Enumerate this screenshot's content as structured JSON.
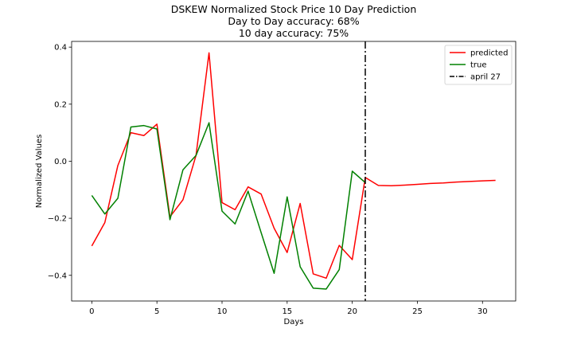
{
  "chart_data": {
    "type": "line",
    "title_lines": [
      "DSKEW Normalized Stock Price 10 Day Prediction",
      "Day to Day accuracy: 68%",
      "10 day accuracy: 75%"
    ],
    "xlabel": "Days",
    "ylabel": "Normalized Values",
    "xlim": [
      -1.55,
      32.55
    ],
    "ylim": [
      -0.49,
      0.42
    ],
    "xticks": [
      0,
      5,
      10,
      15,
      20,
      25,
      30
    ],
    "yticks": [
      -0.4,
      -0.2,
      0.0,
      0.2,
      0.4
    ],
    "ytick_labels": [
      "−0.4",
      "−0.2",
      "0.0",
      "0.2",
      "0.4"
    ],
    "series": [
      {
        "name": "predicted",
        "color": "#ff0000",
        "x": [
          0,
          1,
          2,
          3,
          4,
          5,
          6,
          7,
          8,
          9,
          10,
          11,
          12,
          13,
          14,
          15,
          16,
          17,
          18,
          19,
          20,
          21,
          22,
          23,
          24,
          25,
          26,
          27,
          28,
          29,
          30,
          31
        ],
        "values": [
          -0.297,
          -0.215,
          -0.015,
          0.1,
          0.09,
          0.13,
          -0.195,
          -0.135,
          0.02,
          0.38,
          -0.145,
          -0.17,
          -0.09,
          -0.115,
          -0.235,
          -0.32,
          -0.148,
          -0.395,
          -0.41,
          -0.295,
          -0.345,
          -0.057,
          -0.085,
          -0.086,
          -0.084,
          -0.081,
          -0.078,
          -0.076,
          -0.073,
          -0.071,
          -0.069,
          -0.067
        ]
      },
      {
        "name": "true",
        "color": "#008000",
        "x": [
          0,
          1,
          2,
          3,
          4,
          5,
          6,
          7,
          8,
          9,
          10,
          11,
          12,
          13,
          14,
          15,
          16,
          17,
          18,
          19,
          20,
          21
        ],
        "values": [
          -0.12,
          -0.185,
          -0.13,
          0.12,
          0.125,
          0.113,
          -0.205,
          -0.03,
          0.02,
          0.135,
          -0.175,
          -0.22,
          -0.105,
          -0.25,
          -0.393,
          -0.125,
          -0.37,
          -0.445,
          -0.448,
          -0.38,
          -0.035,
          -0.075
        ]
      }
    ],
    "vline": {
      "name": "april 27",
      "x": 21,
      "color": "#000000"
    },
    "legend": {
      "placement": "top-right",
      "entries": [
        {
          "label": "predicted",
          "color": "#ff0000",
          "style": "solid"
        },
        {
          "label": "true",
          "color": "#008000",
          "style": "solid"
        },
        {
          "label": "april 27",
          "color": "#000000",
          "style": "dashdot"
        }
      ]
    },
    "grid": false
  }
}
